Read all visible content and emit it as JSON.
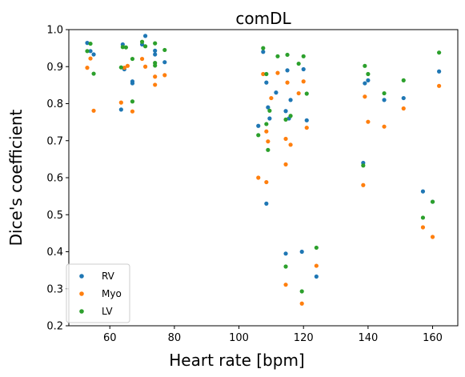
{
  "chart_data": {
    "type": "scatter",
    "title": "comDL",
    "xlabel": "Heart rate [bpm]",
    "ylabel": "Dice's coefficient",
    "xlim": [
      47.3,
      167.8
    ],
    "ylim": [
      0.2,
      1.0
    ],
    "xticks": [
      60,
      80,
      100,
      120,
      140,
      160
    ],
    "yticks": [
      0.2,
      0.3,
      0.4,
      0.5,
      0.6,
      0.7,
      0.8,
      0.9,
      1.0
    ],
    "grid": false,
    "legend_position": "bottom-left",
    "series": [
      {
        "name": "RV",
        "color": "#1f77b4",
        "points": [
          [
            53,
            0.964
          ],
          [
            54,
            0.942
          ],
          [
            55,
            0.933
          ],
          [
            63.5,
            0.784
          ],
          [
            64,
            0.96
          ],
          [
            64.5,
            0.893
          ],
          [
            67,
            0.86
          ],
          [
            67,
            0.855
          ],
          [
            70,
            0.96
          ],
          [
            71,
            0.983
          ],
          [
            74,
            0.943
          ],
          [
            74,
            0.933
          ],
          [
            77,
            0.912
          ],
          [
            106,
            0.74
          ],
          [
            107.5,
            0.94
          ],
          [
            108.5,
            0.857
          ],
          [
            108.5,
            0.53
          ],
          [
            109,
            0.79
          ],
          [
            109.5,
            0.76
          ],
          [
            111.5,
            0.83
          ],
          [
            114.5,
            0.395
          ],
          [
            114.5,
            0.78
          ],
          [
            115,
            0.89
          ],
          [
            115.5,
            0.76
          ],
          [
            116,
            0.81
          ],
          [
            119.5,
            0.4
          ],
          [
            120,
            0.893
          ],
          [
            121,
            0.755
          ],
          [
            124,
            0.333
          ],
          [
            138.5,
            0.64
          ],
          [
            139,
            0.855
          ],
          [
            140,
            0.863
          ],
          [
            145,
            0.81
          ],
          [
            151,
            0.815
          ],
          [
            157,
            0.563
          ],
          [
            160,
            0.535
          ],
          [
            162,
            0.887
          ]
        ]
      },
      {
        "name": "Myo",
        "color": "#ff7f0e",
        "points": [
          [
            53,
            0.897
          ],
          [
            54,
            0.922
          ],
          [
            55,
            0.781
          ],
          [
            63.5,
            0.803
          ],
          [
            64.5,
            0.897
          ],
          [
            65.5,
            0.902
          ],
          [
            67,
            0.779
          ],
          [
            70,
            0.921
          ],
          [
            71,
            0.9
          ],
          [
            74,
            0.873
          ],
          [
            74,
            0.851
          ],
          [
            77,
            0.877
          ],
          [
            106,
            0.6
          ],
          [
            107.5,
            0.88
          ],
          [
            108.5,
            0.725
          ],
          [
            108.5,
            0.588
          ],
          [
            109,
            0.698
          ],
          [
            110,
            0.815
          ],
          [
            112,
            0.883
          ],
          [
            114.5,
            0.311
          ],
          [
            114.5,
            0.705
          ],
          [
            114.5,
            0.636
          ],
          [
            115,
            0.857
          ],
          [
            116,
            0.689
          ],
          [
            118.5,
            0.828
          ],
          [
            119.5,
            0.26
          ],
          [
            120,
            0.86
          ],
          [
            121,
            0.735
          ],
          [
            124,
            0.362
          ],
          [
            138.5,
            0.58
          ],
          [
            139,
            0.819
          ],
          [
            140,
            0.751
          ],
          [
            145,
            0.738
          ],
          [
            151,
            0.787
          ],
          [
            157,
            0.466
          ],
          [
            160,
            0.44
          ],
          [
            162,
            0.848
          ]
        ]
      },
      {
        "name": "LV",
        "color": "#2ca02c",
        "points": [
          [
            53,
            0.942
          ],
          [
            54,
            0.962
          ],
          [
            55,
            0.881
          ],
          [
            63.5,
            0.898
          ],
          [
            64,
            0.953
          ],
          [
            65,
            0.952
          ],
          [
            67,
            0.921
          ],
          [
            67,
            0.806
          ],
          [
            70,
            0.967
          ],
          [
            71,
            0.955
          ],
          [
            74,
            0.963
          ],
          [
            74,
            0.91
          ],
          [
            74,
            0.903
          ],
          [
            77,
            0.945
          ],
          [
            106,
            0.715
          ],
          [
            107.5,
            0.95
          ],
          [
            108.5,
            0.88
          ],
          [
            108.5,
            0.745
          ],
          [
            109,
            0.675
          ],
          [
            109.5,
            0.781
          ],
          [
            112,
            0.928
          ],
          [
            114.5,
            0.36
          ],
          [
            114.5,
            0.757
          ],
          [
            115,
            0.932
          ],
          [
            116,
            0.767
          ],
          [
            118.5,
            0.908
          ],
          [
            119.5,
            0.293
          ],
          [
            120,
            0.928
          ],
          [
            121,
            0.827
          ],
          [
            124,
            0.411
          ],
          [
            138.5,
            0.633
          ],
          [
            139,
            0.902
          ],
          [
            140,
            0.88
          ],
          [
            145,
            0.828
          ],
          [
            151,
            0.863
          ],
          [
            157,
            0.492
          ],
          [
            160,
            0.535
          ],
          [
            162,
            0.938
          ]
        ]
      }
    ]
  }
}
